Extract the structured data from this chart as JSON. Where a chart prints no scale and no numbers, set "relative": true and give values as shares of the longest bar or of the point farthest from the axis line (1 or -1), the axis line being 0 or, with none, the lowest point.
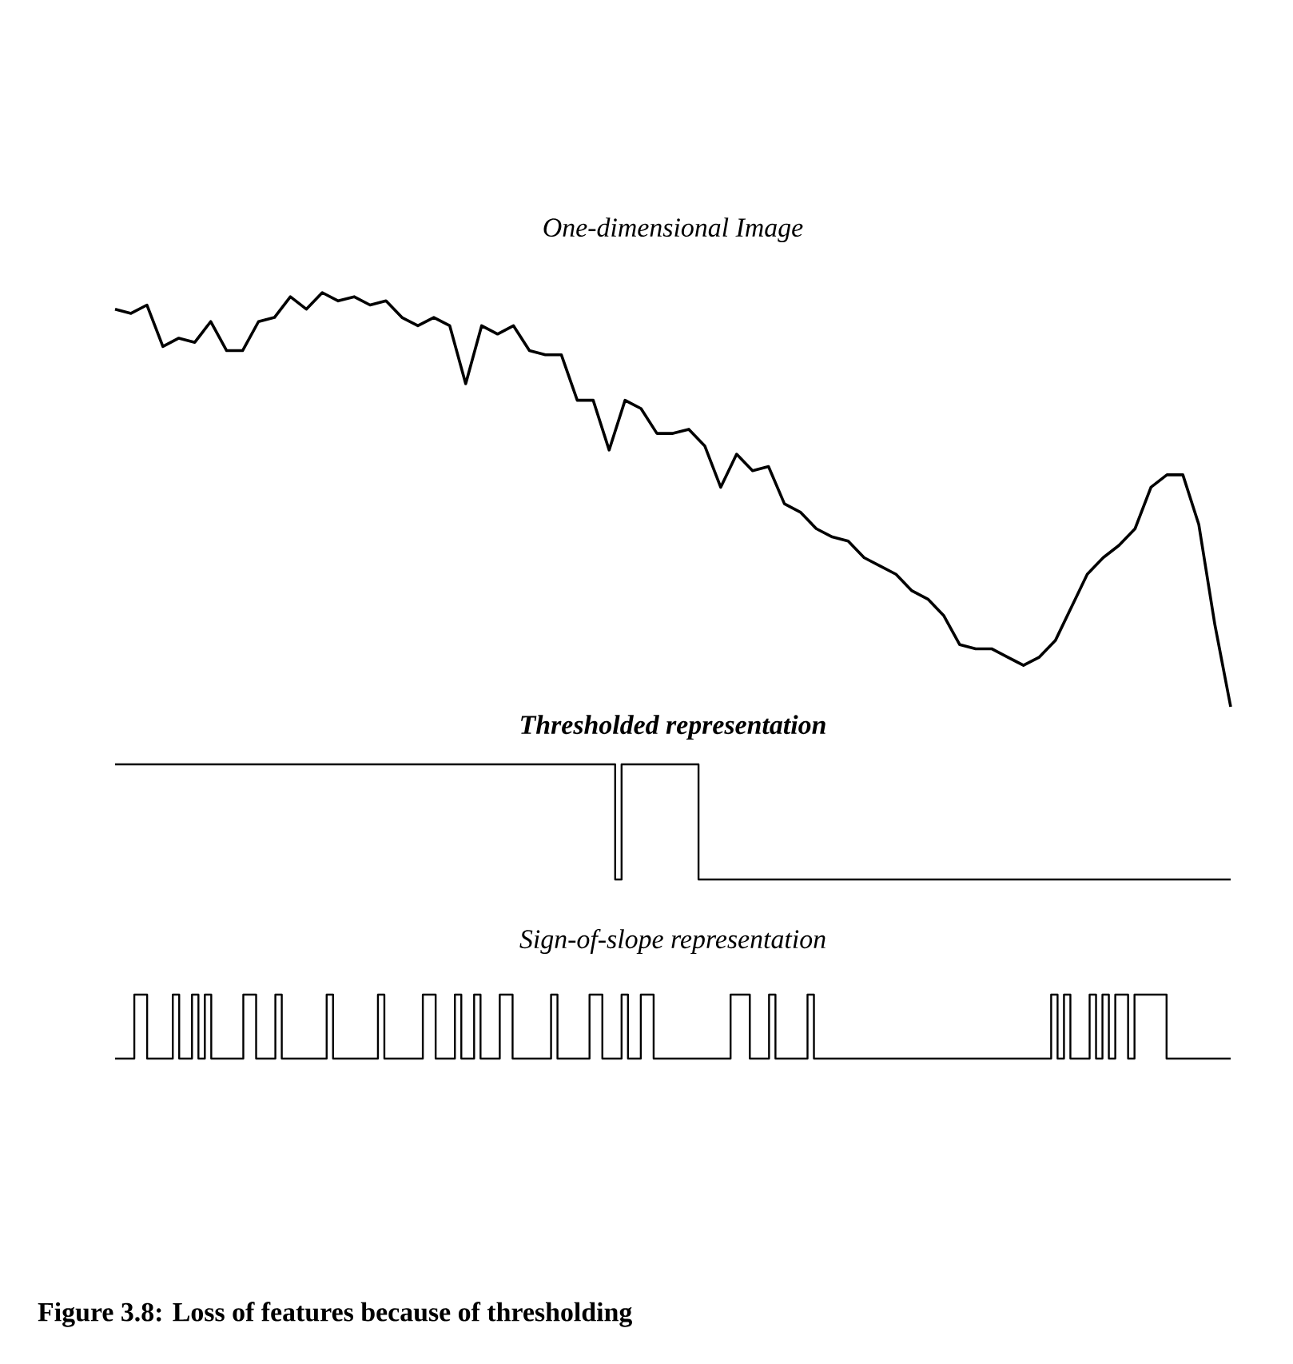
{
  "chart_data": [
    {
      "type": "line",
      "title": "One-dimensional Image",
      "relative": true,
      "color": "#000000",
      "categories": [
        null,
        null,
        null,
        null,
        null,
        null,
        null,
        null,
        null,
        null,
        null,
        null,
        null,
        null,
        null,
        null,
        null,
        null,
        null,
        null,
        null,
        null,
        null,
        null,
        null,
        null,
        null,
        null,
        null,
        null,
        null,
        null,
        null,
        null,
        null,
        null,
        null,
        null,
        null,
        null,
        null,
        null,
        null,
        null,
        null,
        null,
        null,
        null,
        null,
        null,
        null,
        null,
        null,
        null,
        null,
        null,
        null,
        null,
        null,
        null,
        null,
        null,
        null,
        null,
        null,
        null,
        null,
        null,
        null,
        null,
        null
      ],
      "values": [
        0.96,
        0.95,
        0.97,
        0.87,
        0.89,
        0.88,
        0.93,
        0.86,
        0.86,
        0.93,
        0.94,
        0.99,
        0.96,
        1.0,
        0.98,
        0.99,
        0.97,
        0.98,
        0.94,
        0.92,
        0.94,
        0.92,
        0.78,
        0.92,
        0.9,
        0.92,
        0.86,
        0.85,
        0.85,
        0.74,
        0.74,
        0.62,
        0.74,
        0.72,
        0.66,
        0.66,
        0.67,
        0.63,
        0.53,
        0.61,
        0.57,
        0.58,
        0.49,
        0.47,
        0.43,
        0.41,
        0.4,
        0.36,
        0.34,
        0.32,
        0.28,
        0.26,
        0.22,
        0.15,
        0.14,
        0.14,
        0.12,
        0.1,
        0.12,
        0.16,
        0.24,
        0.32,
        0.36,
        0.39,
        0.43,
        0.53,
        0.56,
        0.56,
        0.44,
        0.2,
        0.0
      ]
    },
    {
      "type": "step",
      "title": "Thresholded representation",
      "relative": true,
      "color": "#000000",
      "categories": [
        null,
        null,
        null,
        null,
        null,
        null,
        null,
        null,
        null,
        null,
        null,
        null,
        null,
        null,
        null,
        null,
        null,
        null,
        null,
        null,
        null,
        null,
        null,
        null,
        null,
        null,
        null,
        null,
        null,
        null,
        null,
        null,
        null,
        null,
        null,
        null,
        null,
        null,
        null,
        null,
        null,
        null,
        null,
        null,
        null,
        null,
        null,
        null,
        null,
        null,
        null,
        null,
        null,
        null,
        null,
        null,
        null,
        null,
        null,
        null,
        null,
        null,
        null,
        null,
        null,
        null,
        null,
        null,
        null,
        null,
        null,
        null,
        null,
        null,
        null,
        null,
        null,
        null,
        null,
        null,
        null,
        null,
        null,
        null,
        null,
        null,
        null,
        null,
        null,
        null,
        null,
        null,
        null,
        null,
        null,
        null,
        null,
        null,
        null,
        null,
        null,
        null,
        null,
        null,
        null,
        null,
        null,
        null,
        null,
        null,
        null,
        null,
        null,
        null,
        null,
        null,
        null,
        null,
        null,
        null,
        null,
        null,
        null,
        null,
        null,
        null,
        null,
        null,
        null,
        null,
        null,
        null,
        null,
        null,
        null,
        null,
        null,
        null,
        null,
        null,
        null,
        null,
        null,
        null,
        null,
        null,
        null,
        null,
        null,
        null,
        null,
        null,
        null,
        null,
        null,
        null,
        null,
        null,
        null,
        null,
        null,
        null,
        null,
        null,
        null,
        null,
        null,
        null,
        null,
        null,
        null,
        null,
        null,
        null,
        null
      ],
      "values": [
        1,
        1,
        1,
        1,
        1,
        1,
        1,
        1,
        1,
        1,
        1,
        1,
        1,
        1,
        1,
        1,
        1,
        1,
        1,
        1,
        1,
        1,
        1,
        1,
        1,
        1,
        1,
        1,
        1,
        1,
        1,
        1,
        1,
        1,
        1,
        1,
        1,
        1,
        1,
        1,
        1,
        1,
        1,
        1,
        1,
        1,
        1,
        1,
        1,
        1,
        1,
        1,
        1,
        1,
        1,
        1,
        1,
        1,
        1,
        1,
        1,
        1,
        1,
        1,
        1,
        1,
        1,
        1,
        1,
        1,
        1,
        1,
        1,
        1,
        1,
        1,
        1,
        1,
        0,
        1,
        1,
        1,
        1,
        1,
        1,
        1,
        1,
        1,
        1,
        1,
        1,
        0,
        0,
        0,
        0,
        0,
        0,
        0,
        0,
        0,
        0,
        0,
        0,
        0,
        0,
        0,
        0,
        0,
        0,
        0,
        0,
        0,
        0,
        0,
        0,
        0,
        0,
        0,
        0,
        0,
        0,
        0,
        0,
        0,
        0,
        0,
        0,
        0,
        0,
        0,
        0,
        0,
        0,
        0,
        0,
        0,
        0,
        0,
        0,
        0,
        0,
        0,
        0,
        0,
        0,
        0,
        0,
        0,
        0,
        0,
        0,
        0,
        0,
        0,
        0,
        0,
        0,
        0,
        0,
        0,
        0,
        0,
        0,
        0,
        0,
        0,
        0,
        0,
        0,
        0,
        0,
        0,
        0,
        0,
        0
      ]
    },
    {
      "type": "step",
      "title": "Sign-of-slope representation",
      "relative": true,
      "color": "#000000",
      "annotations": [
        "Figure 3.8: Loss of features because of thresholding"
      ],
      "categories": [
        null,
        null,
        null,
        null,
        null,
        null,
        null,
        null,
        null,
        null,
        null,
        null,
        null,
        null,
        null,
        null,
        null,
        null,
        null,
        null,
        null,
        null,
        null,
        null,
        null,
        null,
        null,
        null,
        null,
        null,
        null,
        null,
        null,
        null,
        null,
        null,
        null,
        null,
        null,
        null,
        null,
        null,
        null,
        null,
        null,
        null,
        null,
        null,
        null,
        null,
        null,
        null,
        null,
        null,
        null,
        null,
        null,
        null,
        null,
        null,
        null,
        null,
        null,
        null,
        null,
        null,
        null,
        null,
        null,
        null,
        null,
        null,
        null,
        null,
        null,
        null,
        null,
        null,
        null,
        null,
        null,
        null,
        null,
        null,
        null,
        null,
        null,
        null,
        null,
        null,
        null,
        null,
        null,
        null,
        null,
        null,
        null,
        null,
        null,
        null,
        null,
        null,
        null,
        null,
        null,
        null,
        null,
        null,
        null,
        null,
        null,
        null,
        null,
        null,
        null,
        null,
        null,
        null,
        null,
        null,
        null,
        null,
        null,
        null,
        null,
        null,
        null,
        null,
        null,
        null,
        null,
        null,
        null,
        null,
        null,
        null,
        null,
        null,
        null,
        null,
        null,
        null,
        null,
        null,
        null,
        null,
        null,
        null,
        null,
        null,
        null,
        null,
        null,
        null,
        null,
        null,
        null,
        null,
        null,
        null,
        null,
        null,
        null,
        null,
        null,
        null,
        null,
        null,
        null,
        null,
        null,
        null,
        null,
        null,
        null
      ],
      "values": [
        0,
        0,
        0,
        1,
        1,
        0,
        0,
        0,
        0,
        1,
        0,
        0,
        1,
        0,
        1,
        0,
        0,
        0,
        0,
        0,
        1,
        1,
        0,
        0,
        0,
        1,
        0,
        0,
        0,
        0,
        0,
        0,
        0,
        1,
        0,
        0,
        0,
        0,
        0,
        0,
        0,
        1,
        0,
        0,
        0,
        0,
        0,
        0,
        1,
        1,
        0,
        0,
        0,
        1,
        0,
        0,
        1,
        0,
        0,
        0,
        1,
        1,
        0,
        0,
        0,
        0,
        0,
        0,
        1,
        0,
        0,
        0,
        0,
        0,
        1,
        1,
        0,
        0,
        0,
        1,
        0,
        0,
        1,
        1,
        0,
        0,
        0,
        0,
        0,
        0,
        0,
        0,
        0,
        0,
        0,
        0,
        1,
        1,
        1,
        0,
        0,
        0,
        1,
        0,
        0,
        0,
        0,
        0,
        1,
        0,
        0,
        0,
        0,
        0,
        0,
        0,
        0,
        0,
        0,
        0,
        0,
        0,
        0,
        0,
        0,
        0,
        0,
        0,
        0,
        0,
        0,
        0,
        0,
        0,
        0,
        0,
        0,
        0,
        0,
        0,
        0,
        0,
        0,
        0,
        0,
        0,
        1,
        0,
        1,
        0,
        0,
        0,
        1,
        0,
        1,
        0,
        1,
        1,
        0,
        1,
        1,
        1,
        1,
        1,
        0,
        0,
        0,
        0,
        0,
        0,
        0,
        0,
        0,
        0,
        0
      ]
    }
  ]
}
